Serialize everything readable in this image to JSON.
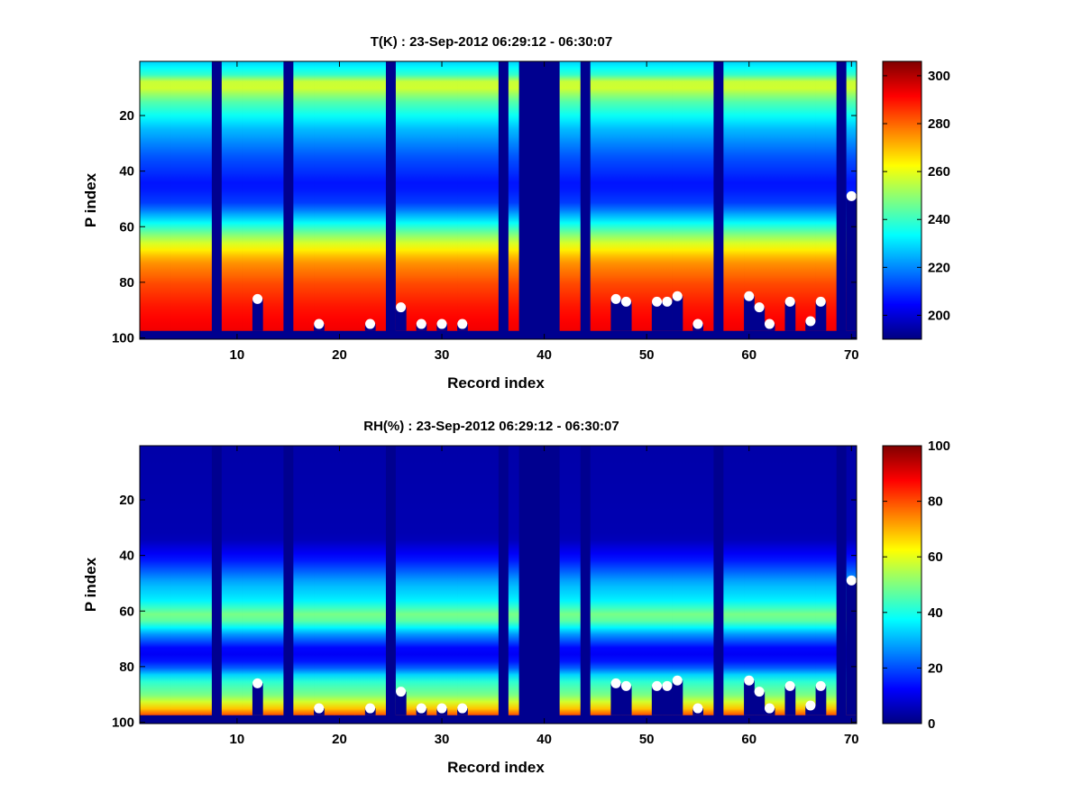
{
  "chart_data": [
    {
      "type": "heatmap",
      "title": "T(K) : 23-Sep-2012 06:29:12 - 06:30:07",
      "xlabel": "Record index",
      "ylabel": "P index",
      "xlim": [
        0.5,
        70.5
      ],
      "ylim": [
        100.5,
        0.5
      ],
      "y_reversed": true,
      "x_ticks": [
        10,
        20,
        30,
        40,
        50,
        60,
        70
      ],
      "y_ticks": [
        20,
        40,
        60,
        80,
        100
      ],
      "colormap": "jet",
      "clim": [
        190,
        306
      ],
      "colorbar_ticks": [
        200,
        220,
        240,
        260,
        280,
        300
      ],
      "missing_value_color": "#00008f",
      "data_rows_end_p": 97,
      "missing_columns": [
        8,
        15,
        25,
        36,
        38,
        39,
        40,
        41,
        44,
        57,
        69
      ],
      "marker_color": "#ffffff",
      "markers": [
        {
          "x": 12,
          "y": 86
        },
        {
          "x": 18,
          "y": 95
        },
        {
          "x": 23,
          "y": 95
        },
        {
          "x": 26,
          "y": 89
        },
        {
          "x": 28,
          "y": 95
        },
        {
          "x": 30,
          "y": 95
        },
        {
          "x": 32,
          "y": 95
        },
        {
          "x": 47,
          "y": 86
        },
        {
          "x": 48,
          "y": 87
        },
        {
          "x": 51,
          "y": 87
        },
        {
          "x": 52,
          "y": 87
        },
        {
          "x": 53,
          "y": 85
        },
        {
          "x": 55,
          "y": 95
        },
        {
          "x": 60,
          "y": 85
        },
        {
          "x": 61,
          "y": 89
        },
        {
          "x": 62,
          "y": 95
        },
        {
          "x": 64,
          "y": 87
        },
        {
          "x": 66,
          "y": 94
        },
        {
          "x": 67,
          "y": 87
        },
        {
          "x": 70,
          "y": 49
        }
      ],
      "profile_p": [
        1,
        6,
        9,
        15,
        25,
        35,
        45,
        52,
        58,
        65,
        72,
        80,
        88,
        94,
        97
      ],
      "profile_values": [
        228,
        240,
        262,
        244,
        226,
        214,
        206,
        212,
        232,
        256,
        274,
        283,
        289,
        292,
        293
      ]
    },
    {
      "type": "heatmap",
      "title": "RH(%) : 23-Sep-2012 06:29:12 - 06:30:07",
      "xlabel": "Record index",
      "ylabel": "P index",
      "xlim": [
        0.5,
        70.5
      ],
      "ylim": [
        100.5,
        0.5
      ],
      "y_reversed": true,
      "x_ticks": [
        10,
        20,
        30,
        40,
        50,
        60,
        70
      ],
      "y_ticks": [
        20,
        40,
        60,
        80,
        100
      ],
      "colormap": "jet",
      "clim": [
        0,
        100
      ],
      "colorbar_ticks": [
        0,
        20,
        40,
        60,
        80,
        100
      ],
      "missing_value_color": "#00008f",
      "data_rows_end_p": 97,
      "missing_columns": [
        8,
        15,
        25,
        36,
        38,
        39,
        40,
        41,
        44,
        57,
        69
      ],
      "marker_color": "#ffffff",
      "markers": [
        {
          "x": 12,
          "y": 86
        },
        {
          "x": 18,
          "y": 95
        },
        {
          "x": 23,
          "y": 95
        },
        {
          "x": 26,
          "y": 89
        },
        {
          "x": 28,
          "y": 95
        },
        {
          "x": 30,
          "y": 95
        },
        {
          "x": 32,
          "y": 95
        },
        {
          "x": 47,
          "y": 86
        },
        {
          "x": 48,
          "y": 87
        },
        {
          "x": 51,
          "y": 87
        },
        {
          "x": 52,
          "y": 87
        },
        {
          "x": 53,
          "y": 85
        },
        {
          "x": 55,
          "y": 95
        },
        {
          "x": 60,
          "y": 85
        },
        {
          "x": 61,
          "y": 89
        },
        {
          "x": 62,
          "y": 95
        },
        {
          "x": 64,
          "y": 87
        },
        {
          "x": 66,
          "y": 94
        },
        {
          "x": 67,
          "y": 87
        },
        {
          "x": 70,
          "y": 49
        }
      ],
      "profile_p": [
        1,
        34,
        42,
        50,
        56,
        62,
        68,
        74,
        79,
        84,
        90,
        94,
        97
      ],
      "profile_values": [
        4,
        5,
        15,
        30,
        36,
        52,
        28,
        10,
        16,
        40,
        50,
        65,
        80
      ]
    }
  ]
}
